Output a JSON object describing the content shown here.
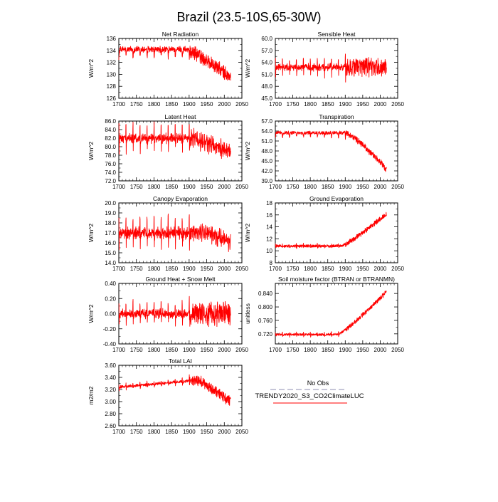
{
  "title": "Brazil (23.5-10S,65-30W)",
  "colors": {
    "model": "#ff0000",
    "obs": "#b3b3cc",
    "axis": "#000000"
  },
  "legend": {
    "obs_label": "No Obs",
    "model_label": "TRENDY2020_S3_CO2ClimateLUC"
  },
  "chart_data": [
    {
      "type": "line",
      "title": "Net Radiation",
      "ylabel": "W/m^2",
      "xlim": [
        1700,
        2050
      ],
      "ylim": [
        126,
        136
      ],
      "xticks": [
        1700,
        1750,
        1800,
        1850,
        1900,
        1950,
        2000,
        2050
      ],
      "yticks": [
        126,
        128,
        130,
        132,
        134,
        136
      ],
      "ydec": 0,
      "series": [
        {
          "name": "TRENDY2020_S3_CO2ClimateLUC",
          "shape": {
            "kind": "decline",
            "base": 134.2,
            "amp": 1.2,
            "amp_dir": "down",
            "drop_start": 1890,
            "end_value": 129.5,
            "noise": 0.4,
            "late_noise": 1.0
          }
        }
      ]
    },
    {
      "type": "line",
      "title": "Sensible Heat",
      "ylabel": "W/m^2",
      "xlim": [
        1700,
        2050
      ],
      "ylim": [
        45,
        60
      ],
      "xticks": [
        1700,
        1750,
        1800,
        1850,
        1900,
        1950,
        2000,
        2050
      ],
      "yticks": [
        45.0,
        48.0,
        51.0,
        54.0,
        57.0,
        60.0
      ],
      "ydec": 1,
      "series": [
        {
          "name": "TRENDY2020_S3_CO2ClimateLUC",
          "shape": {
            "kind": "flat",
            "base": 52.8,
            "amp": 2.0,
            "amp_dir": "both",
            "noise": 0.6,
            "late_noise": 2.0
          }
        }
      ]
    },
    {
      "type": "line",
      "title": "Latent Heat",
      "ylabel": "W/m^2",
      "xlim": [
        1700,
        2050
      ],
      "ylim": [
        72,
        86
      ],
      "xticks": [
        1700,
        1750,
        1800,
        1850,
        1900,
        1950,
        2000,
        2050
      ],
      "yticks": [
        72.0,
        74.0,
        76.0,
        78.0,
        80.0,
        82.0,
        84.0,
        86.0
      ],
      "ydec": 1,
      "series": [
        {
          "name": "TRENDY2020_S3_CO2ClimateLUC",
          "shape": {
            "kind": "decline",
            "base": 82.0,
            "amp": 3.0,
            "amp_dir": "both",
            "drop_start": 1900,
            "end_value": 78.5,
            "noise": 0.6,
            "late_noise": 1.5
          }
        }
      ]
    },
    {
      "type": "line",
      "title": "Transpiration",
      "ylabel": "W/m^2",
      "xlim": [
        1700,
        2050
      ],
      "ylim": [
        39,
        57
      ],
      "xticks": [
        1700,
        1750,
        1800,
        1850,
        1900,
        1950,
        2000,
        2050
      ],
      "yticks": [
        39.0,
        42.0,
        45.0,
        48.0,
        51.0,
        54.0,
        57.0
      ],
      "ydec": 1,
      "series": [
        {
          "name": "TRENDY2020_S3_CO2ClimateLUC",
          "shape": {
            "kind": "decline",
            "base": 53.5,
            "amp": 1.2,
            "amp_dir": "down",
            "drop_start": 1900,
            "end_value": 42.5,
            "noise": 0.4,
            "late_noise": 0.8
          }
        }
      ]
    },
    {
      "type": "line",
      "title": "Canopy Evaporation",
      "ylabel": "W/m^2",
      "xlim": [
        1700,
        2050
      ],
      "ylim": [
        14,
        20
      ],
      "xticks": [
        1700,
        1750,
        1800,
        1850,
        1900,
        1950,
        2000,
        2050
      ],
      "yticks": [
        14.0,
        15.0,
        16.0,
        17.0,
        18.0,
        19.0,
        20.0
      ],
      "ydec": 1,
      "series": [
        {
          "name": "TRENDY2020_S3_CO2ClimateLUC",
          "shape": {
            "kind": "decline",
            "base": 17.0,
            "amp": 1.5,
            "amp_dir": "both",
            "drop_start": 1940,
            "end_value": 16.0,
            "noise": 0.3,
            "late_noise": 0.5
          }
        }
      ]
    },
    {
      "type": "line",
      "title": "Ground Evaporation",
      "ylabel": "W/m^2",
      "xlim": [
        1700,
        2050
      ],
      "ylim": [
        8,
        18
      ],
      "xticks": [
        1700,
        1750,
        1800,
        1850,
        1900,
        1950,
        2000,
        2050
      ],
      "yticks": [
        8,
        10,
        12,
        14,
        16,
        18
      ],
      "ydec": 0,
      "series": [
        {
          "name": "TRENDY2020_S3_CO2ClimateLUC",
          "shape": {
            "kind": "rise",
            "base": 10.8,
            "amp": 0.3,
            "amp_dir": "both",
            "rise_start": 1890,
            "end_value": 16.2,
            "noise": 0.2,
            "late_noise": 0.4
          }
        }
      ]
    },
    {
      "type": "line",
      "title": "Ground Heat + Snow Melt",
      "ylabel": "W/m^2",
      "xlim": [
        1700,
        2050
      ],
      "ylim": [
        -0.4,
        0.4
      ],
      "xticks": [
        1700,
        1750,
        1800,
        1850,
        1900,
        1950,
        2000,
        2050
      ],
      "yticks": [
        -0.4,
        -0.2,
        0.0,
        0.2,
        0.4
      ],
      "ydec": 2,
      "series": [
        {
          "name": "TRENDY2020_S3_CO2ClimateLUC",
          "shape": {
            "kind": "flat",
            "base": 0.0,
            "amp": 0.14,
            "amp_dir": "both",
            "noise": 0.04,
            "late_noise": 0.12
          }
        }
      ]
    },
    {
      "type": "line",
      "title": "Soil moisture factor (BTRAN or BTRANMN)",
      "ylabel": "unitless",
      "xlim": [
        1700,
        2050
      ],
      "ylim": [
        0.69,
        0.87
      ],
      "xticks": [
        1700,
        1750,
        1800,
        1850,
        1900,
        1950,
        2000,
        2050
      ],
      "yticks": [
        0.72,
        0.76,
        0.8,
        0.84
      ],
      "ydec": 3,
      "series": [
        {
          "name": "TRENDY2020_S3_CO2ClimateLUC",
          "shape": {
            "kind": "rise",
            "base": 0.718,
            "amp": 0.005,
            "amp_dir": "both",
            "rise_start": 1880,
            "end_value": 0.845,
            "noise": 0.003,
            "late_noise": 0.006
          }
        }
      ]
    },
    {
      "type": "line",
      "title": "Total LAI",
      "ylabel": "m2/m2",
      "xlim": [
        1700,
        2050
      ],
      "ylim": [
        2.6,
        3.6
      ],
      "xticks": [
        1700,
        1750,
        1800,
        1850,
        1900,
        1950,
        2000,
        2050
      ],
      "yticks": [
        2.6,
        2.8,
        3.0,
        3.2,
        3.4,
        3.6
      ],
      "ydec": 2,
      "series": [
        {
          "name": "TRENDY2020_S3_CO2ClimateLUC",
          "shape": {
            "kind": "hump",
            "base": 3.24,
            "peak": 3.35,
            "amp": 0.04,
            "amp_dir": "both",
            "drop_start": 1930,
            "end_value": 3.0,
            "noise": 0.02,
            "late_noise": 0.08
          }
        }
      ]
    }
  ]
}
